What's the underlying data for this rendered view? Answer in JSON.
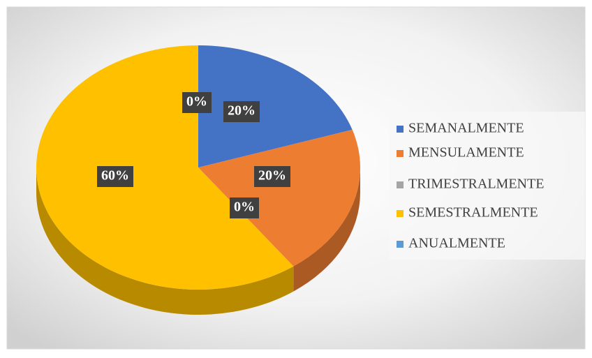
{
  "chart_data": {
    "type": "pie",
    "categories": [
      "SEMANALMENTE",
      "MENSULAMENTE",
      "TRIMESTRALMENTE",
      "SEMESTRALMENTE",
      "ANUALMENTE"
    ],
    "values": [
      20,
      20,
      0,
      60,
      0
    ],
    "value_labels": [
      "20%",
      "20%",
      "0%",
      "60%",
      "0%"
    ],
    "colors": [
      "#4472c4",
      "#ed7d31",
      "#a5a5a5",
      "#ffc000",
      "#5b9bd5"
    ],
    "legend": "right"
  }
}
